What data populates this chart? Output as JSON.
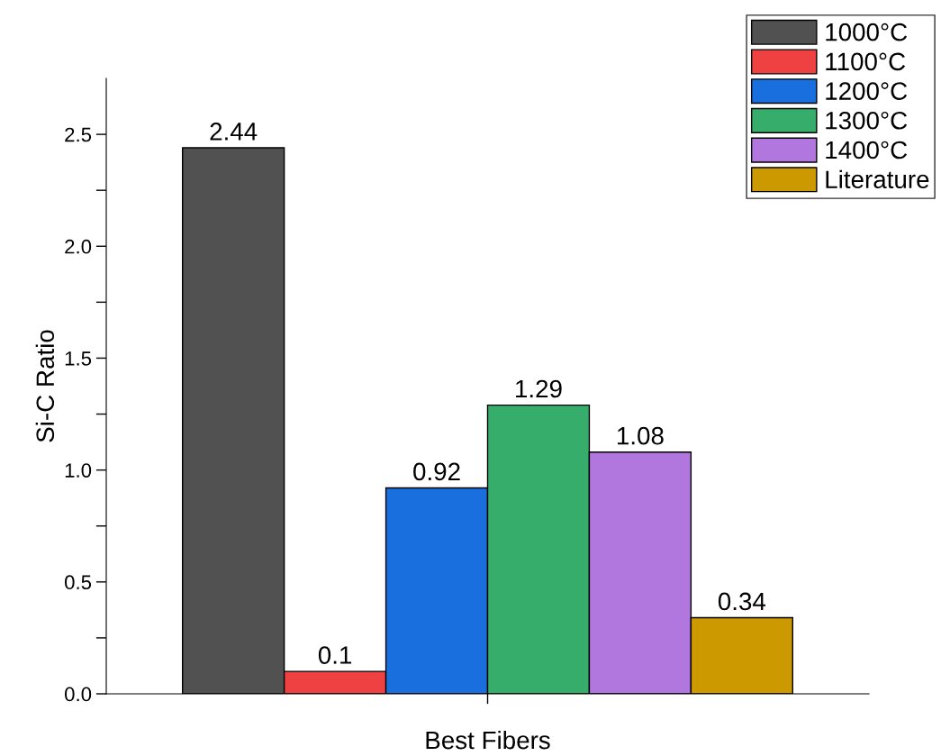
{
  "chart_data": {
    "type": "bar",
    "ylabel": "Si-C Ratio",
    "xlabel": "Best Fibers",
    "categories": [
      null
    ],
    "series": [
      {
        "name": "1000°C",
        "color": "#515151",
        "values": [
          2.44
        ]
      },
      {
        "name": "1100°C",
        "color": "#f04142",
        "values": [
          0.1
        ]
      },
      {
        "name": "1200°C",
        "color": "#1a6fdf",
        "values": [
          0.92
        ]
      },
      {
        "name": "1300°C",
        "color": "#37ad6b",
        "values": [
          1.29
        ]
      },
      {
        "name": "1400°C",
        "color": "#b177de",
        "values": [
          1.08
        ]
      },
      {
        "name": "Literature",
        "color": "#cc9900",
        "values": [
          0.34
        ]
      }
    ],
    "ylim": [
      0,
      2.75
    ],
    "yticks": [
      {
        "value": 0,
        "label": "0.0"
      },
      {
        "value": 0.25,
        "label": null
      },
      0.5,
      {
        "value": 0.75,
        "label": null
      },
      {
        "value": 1,
        "label": "1.0"
      },
      {
        "value": 1.25,
        "label": null
      },
      1.5,
      {
        "value": 1.75,
        "label": null
      },
      {
        "value": 2,
        "label": "2.0"
      },
      {
        "value": 2.25,
        "label": null
      },
      2.5
    ],
    "data_labels": true,
    "legend": "top right",
    "grid": false
  }
}
